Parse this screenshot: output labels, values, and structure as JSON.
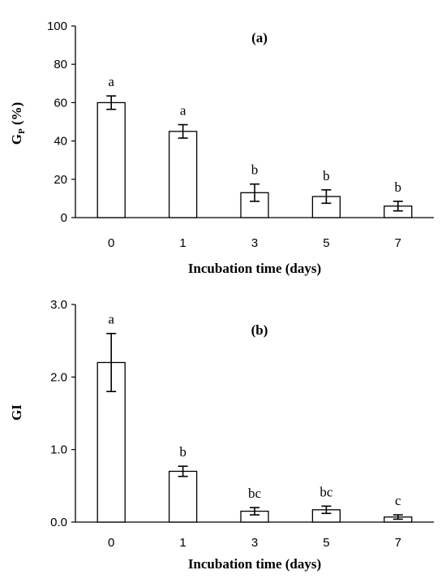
{
  "chart_data": [
    {
      "type": "bar",
      "panel_label": "(a)",
      "categories": [
        "0",
        "1",
        "3",
        "5",
        "7"
      ],
      "values": [
        60,
        45,
        13,
        11,
        6
      ],
      "errors": [
        3.5,
        3.5,
        4.5,
        3.5,
        2.5
      ],
      "significance": [
        "a",
        "a",
        "b",
        "b",
        "b"
      ],
      "xlabel": "Incubation time (days)",
      "ylabel": {
        "main": "G",
        "sub": "P",
        "rest": " (%)"
      },
      "ylim": [
        0,
        100
      ],
      "yticks": [
        "0",
        "20",
        "40",
        "60",
        "80",
        "100"
      ],
      "grid": false
    },
    {
      "type": "bar",
      "panel_label": "(b)",
      "categories": [
        "0",
        "1",
        "3",
        "5",
        "7"
      ],
      "values": [
        2.2,
        0.7,
        0.15,
        0.17,
        0.07
      ],
      "errors": [
        0.4,
        0.07,
        0.05,
        0.05,
        0.03
      ],
      "significance": [
        "a",
        "b",
        "bc",
        "bc",
        "c"
      ],
      "xlabel": "Incubation time (days)",
      "ylabel": {
        "main": "GI",
        "sub": "",
        "rest": ""
      },
      "ylim": [
        0,
        3
      ],
      "yticks": [
        "0.0",
        "1.0",
        "2.0",
        "3.0"
      ],
      "grid": false
    }
  ]
}
